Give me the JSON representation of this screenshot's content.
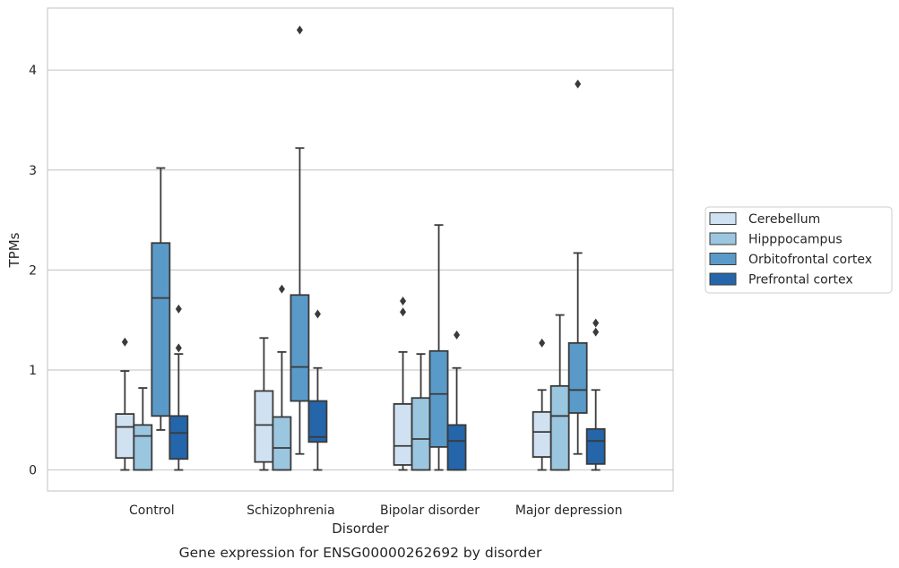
{
  "chart_data": {
    "type": "boxplot",
    "title": "",
    "caption": "Gene expression for ENSG00000262692 by disorder",
    "xlabel": "Disorder",
    "ylabel": "TPMs",
    "ylim": [
      -0.21,
      4.62
    ],
    "yticks": [
      0,
      1,
      2,
      3,
      4
    ],
    "grid": true,
    "legend_position": "right",
    "categories": [
      "Control",
      "Schizophrenia",
      "Bipolar disorder",
      "Major depression"
    ],
    "series": [
      {
        "name": "Cerebellum",
        "color": "#d0e1f2",
        "boxes": [
          {
            "whisker_low": 0.0,
            "q1": 0.12,
            "median": 0.43,
            "q3": 0.56,
            "whisker_high": 0.99,
            "outliers": [
              1.28
            ]
          },
          {
            "whisker_low": 0.0,
            "q1": 0.08,
            "median": 0.45,
            "q3": 0.79,
            "whisker_high": 1.32,
            "outliers": []
          },
          {
            "whisker_low": 0.0,
            "q1": 0.05,
            "median": 0.24,
            "q3": 0.66,
            "whisker_high": 1.18,
            "outliers": [
              1.58,
              1.69
            ]
          },
          {
            "whisker_low": 0.0,
            "q1": 0.13,
            "median": 0.38,
            "q3": 0.58,
            "whisker_high": 0.8,
            "outliers": [
              1.27
            ]
          }
        ]
      },
      {
        "name": "Hipppocampus",
        "color": "#9ac6df",
        "boxes": [
          {
            "whisker_low": 0.0,
            "q1": 0.0,
            "median": 0.34,
            "q3": 0.45,
            "whisker_high": 0.82,
            "outliers": []
          },
          {
            "whisker_low": 0.0,
            "q1": 0.0,
            "median": 0.22,
            "q3": 0.53,
            "whisker_high": 1.18,
            "outliers": [
              1.81
            ]
          },
          {
            "whisker_low": 0.0,
            "q1": 0.0,
            "median": 0.31,
            "q3": 0.72,
            "whisker_high": 1.16,
            "outliers": []
          },
          {
            "whisker_low": 0.0,
            "q1": 0.0,
            "median": 0.54,
            "q3": 0.84,
            "whisker_high": 1.55,
            "outliers": []
          }
        ]
      },
      {
        "name": "Orbitofrontal cortex",
        "color": "#5a9ac8",
        "boxes": [
          {
            "whisker_low": 0.4,
            "q1": 0.54,
            "median": 1.72,
            "q3": 2.27,
            "whisker_high": 3.02,
            "outliers": []
          },
          {
            "whisker_low": 0.16,
            "q1": 0.69,
            "median": 1.03,
            "q3": 1.75,
            "whisker_high": 3.22,
            "outliers": [
              4.4
            ]
          },
          {
            "whisker_low": 0.0,
            "q1": 0.23,
            "median": 0.76,
            "q3": 1.19,
            "whisker_high": 2.45,
            "outliers": []
          },
          {
            "whisker_low": 0.16,
            "q1": 0.57,
            "median": 0.8,
            "q3": 1.27,
            "whisker_high": 2.17,
            "outliers": [
              3.86
            ]
          }
        ]
      },
      {
        "name": "Prefrontal cortex",
        "color": "#2565a9",
        "boxes": [
          {
            "whisker_low": 0.0,
            "q1": 0.11,
            "median": 0.37,
            "q3": 0.54,
            "whisker_high": 1.16,
            "outliers": [
              1.22,
              1.61
            ]
          },
          {
            "whisker_low": 0.0,
            "q1": 0.28,
            "median": 0.33,
            "q3": 0.69,
            "whisker_high": 1.02,
            "outliers": [
              1.56
            ]
          },
          {
            "whisker_low": 0.0,
            "q1": 0.0,
            "median": 0.29,
            "q3": 0.45,
            "whisker_high": 1.02,
            "outliers": [
              1.35
            ]
          },
          {
            "whisker_low": 0.0,
            "q1": 0.06,
            "median": 0.29,
            "q3": 0.41,
            "whisker_high": 0.8,
            "outliers": [
              1.38,
              1.47
            ]
          }
        ]
      }
    ]
  }
}
